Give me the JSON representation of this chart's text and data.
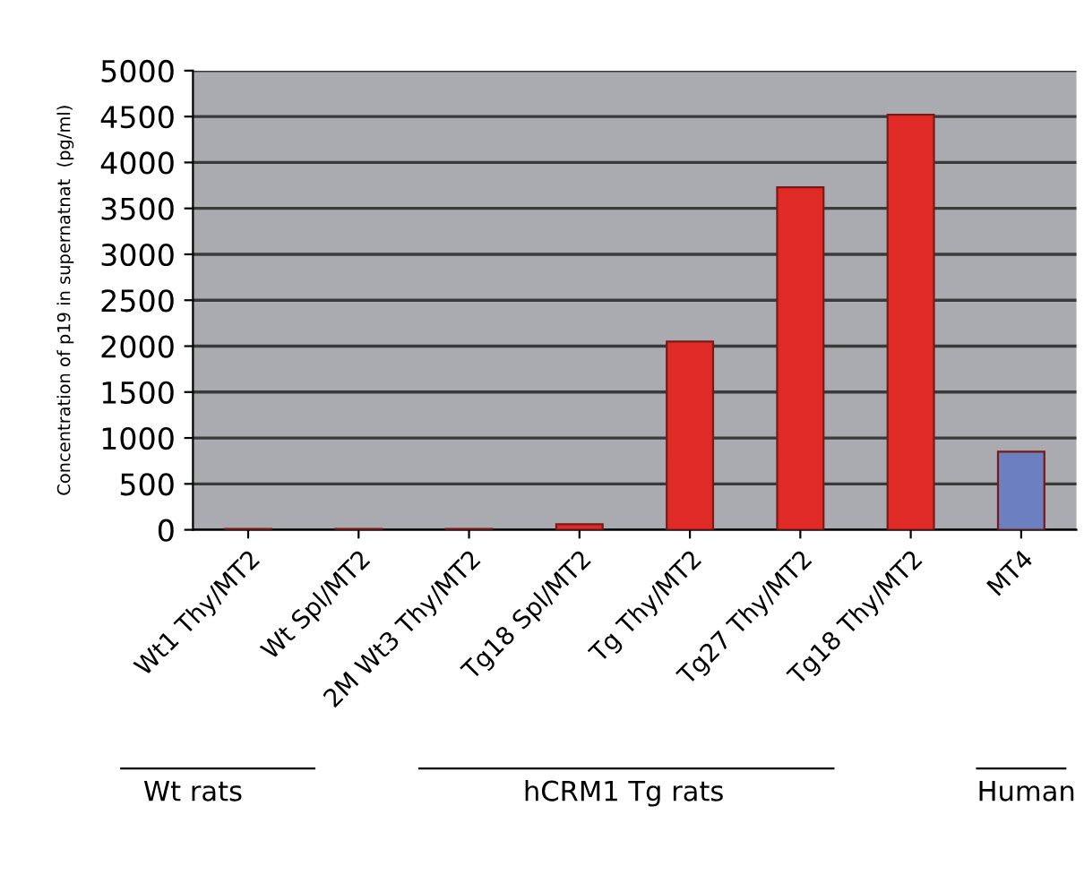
{
  "chart_data": {
    "type": "bar",
    "ylabel": "Concentration of p19 in supernatnat  (pg/ml)",
    "categories": [
      "Wt1 Thy/MT2",
      "Wt Spl/MT2",
      "2M Wt3 Thy/MT2",
      "Tg18 Spl/MT2",
      "Tg Thy/MT2",
      "Tg27 Thy/MT2",
      "Tg18 Thy/MT2",
      "MT4"
    ],
    "values": [
      10,
      10,
      10,
      60,
      2050,
      3730,
      4520,
      850
    ],
    "colors": [
      "#e02a26",
      "#e02a26",
      "#e02a26",
      "#e02a26",
      "#e02a26",
      "#e02a26",
      "#e02a26",
      "#6c7fc0"
    ],
    "ylim": [
      0,
      5000
    ],
    "yticks": [
      0,
      500,
      1000,
      1500,
      2000,
      2500,
      3000,
      3500,
      4000,
      4500,
      5000
    ],
    "grid": "y",
    "annotations": [
      "Wt rats",
      "hCRM1 Tg rats",
      "Human"
    ]
  }
}
